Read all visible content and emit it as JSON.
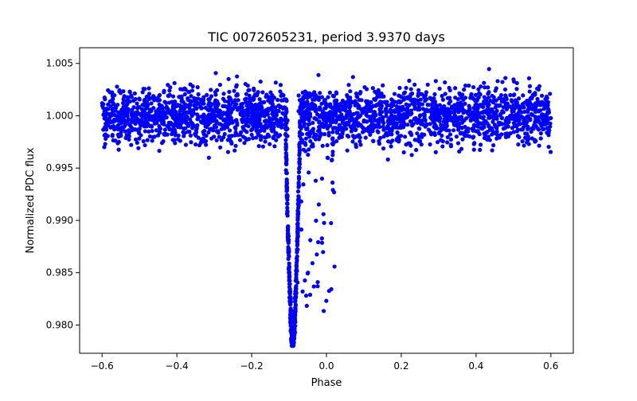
{
  "chart_data": {
    "type": "scatter",
    "title": "TIC 0072605231, period 3.9370 days",
    "xlabel": "Phase",
    "ylabel": "Normalized PDC flux",
    "xlim": [
      -0.66,
      0.66
    ],
    "ylim": [
      0.9773,
      1.0065
    ],
    "xticks": [
      -0.6,
      -0.4,
      -0.2,
      0.0,
      0.2,
      0.4,
      0.6
    ],
    "xtick_labels": [
      "−0.6",
      "−0.4",
      "−0.2",
      "0.0",
      "0.2",
      "0.4",
      "0.6"
    ],
    "yticks": [
      0.98,
      0.985,
      0.99,
      0.995,
      1.0,
      1.005
    ],
    "ytick_labels": [
      "0.980",
      "0.985",
      "0.990",
      "0.995",
      "1.000",
      "1.005"
    ],
    "grid": false,
    "series": [
      {
        "name": "PDC flux",
        "color": "#0000ff",
        "marker": "circle",
        "phase_range": [
          -0.6,
          0.6
        ],
        "baseline_flux": 1.0,
        "baseline_scatter_range": [
          0.9955,
          1.005
        ],
        "transit": {
          "phase_center": -0.09,
          "half_width": 0.02,
          "min_flux": 0.978,
          "sparse_tail_to_phase": 0.01
        },
        "secondary_bump_phase": [
          0.4,
          0.6
        ]
      }
    ]
  }
}
